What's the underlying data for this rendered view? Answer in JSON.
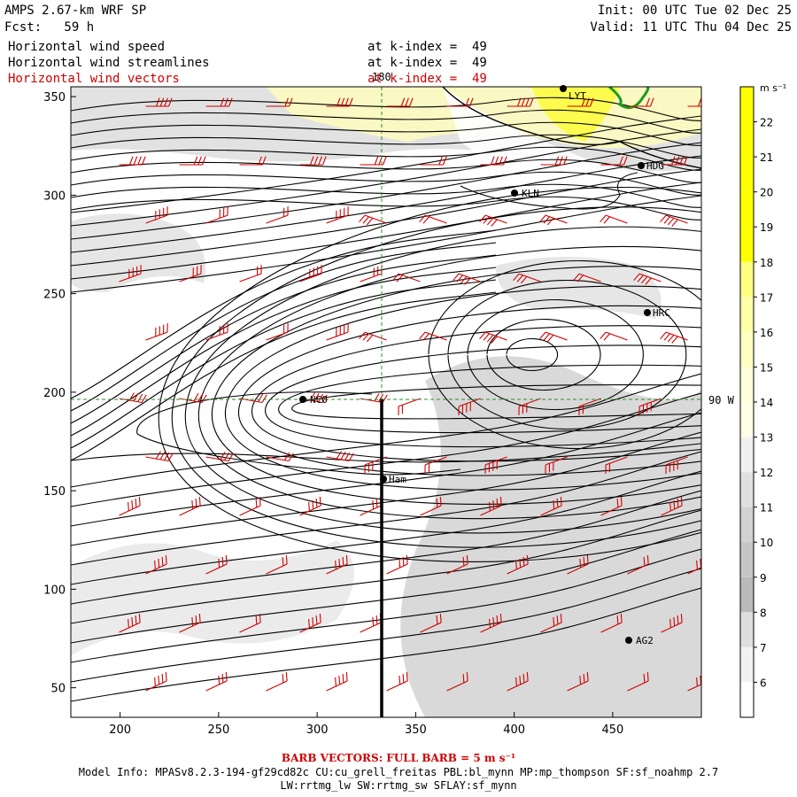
{
  "header": {
    "title": "AMPS 2.67-km WRF SP",
    "forecast": "Fcst:   59 h",
    "init": "Init: 00 UTC Tue 02 Dec 25",
    "valid": "Valid: 11 UTC Thu 04 Dec 25"
  },
  "fields": [
    {
      "name": "Horizontal wind speed",
      "level": "at k-index =  49",
      "color": "#000000"
    },
    {
      "name": "Horizontal wind streamlines",
      "level": "at k-index =  49",
      "color": "#000000"
    },
    {
      "name": "Horizontal wind vectors",
      "level": "at k-index =  49",
      "color": "#d00000"
    }
  ],
  "map": {
    "x_ticks": [
      "200",
      "250",
      "300",
      "350",
      "400",
      "450"
    ],
    "y_ticks": [
      "350",
      "300",
      "250",
      "200",
      "150",
      "100",
      "50"
    ],
    "meridian_label": "180",
    "parallel_label": "90 W",
    "stations": [
      "LYT",
      "HDG",
      "KLN",
      "HRC",
      "NCO",
      "Ham",
      "AG2"
    ],
    "grid_color": "#2e8b2e",
    "coast_color": "#1a9a1a"
  },
  "colorbar": {
    "units": "m s⁻¹",
    "levels": [
      "22",
      "21",
      "20",
      "19",
      "18",
      "17",
      "16",
      "15",
      "14",
      "13",
      "12",
      "11",
      "10",
      "9",
      "8",
      "7",
      "6"
    ],
    "colors": [
      "#ffff00",
      "#ffff00",
      "#ffff00",
      "#ffff00",
      "#ffff00",
      "#ffff80",
      "#ffffa8",
      "#ffffc0",
      "#fefedc",
      "#fefee6",
      "#f0f0f0",
      "#e0e0e0",
      "#d2d2d2",
      "#c6c6c6",
      "#bababa",
      "#dedede",
      "#f2f2f2",
      "#ffffff"
    ]
  },
  "footer": {
    "barb_note": "BARB VECTORS:  FULL BARB = 5 m s⁻¹",
    "model_info": "Model Info: MPASv8.2.3-194-gf29cd82c CU:cu_grell_freitas PBL:bl_mynn MP:mp_thompson SF:sf_noahmp 2.7",
    "model_info2": "LW:rrtmg_lw SW:rrtmg_sw SFLAY:sf_mynn"
  }
}
